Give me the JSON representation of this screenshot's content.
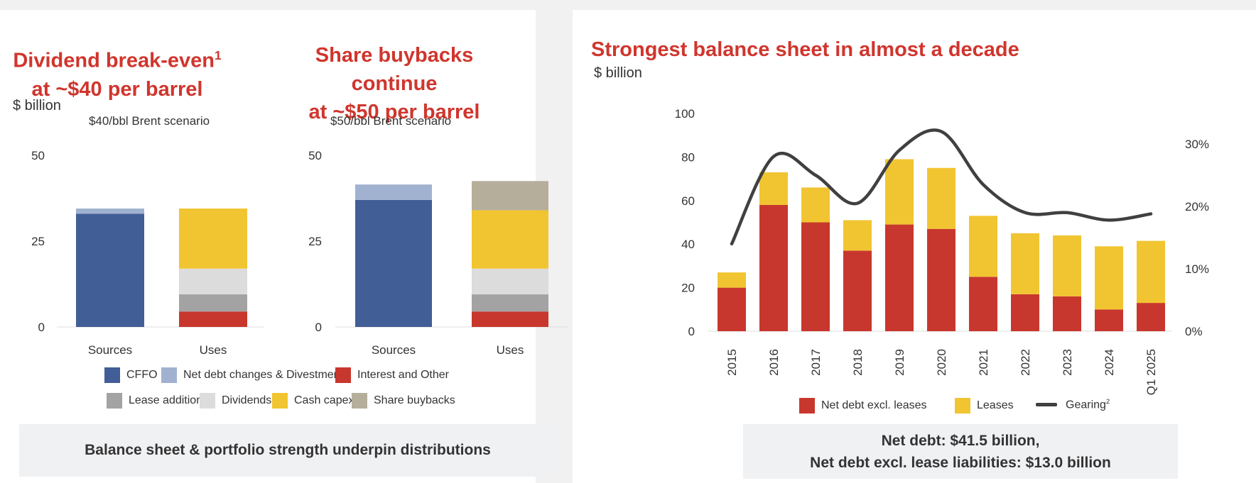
{
  "colors": {
    "cffo": "#425e96",
    "net_debt_divest": "#a1b2d0",
    "interest_other": "#c8372d",
    "lease_additions": "#a3a3a3",
    "dividends": "#dcdcdc",
    "cash_capex": "#f1c531",
    "share_buybacks": "#b5ae9b",
    "net_debt_excl_leases": "#c8372d",
    "leases": "#f1c531",
    "gearing": "#404040",
    "title_red": "#d0352d"
  },
  "left": {
    "title_a_line1": "Dividend break-even",
    "title_a_sup": "1",
    "title_a_line2": "at ~$40 per barrel",
    "title_b_line1": "Share buybacks continue",
    "title_b_line2": "at ~$50 per barrel",
    "unit": "$ billion",
    "scenario_a": "$40/bbl Brent scenario",
    "scenario_b": "$50/bbl Brent scenario",
    "banner": "Balance sheet & portfolio strength underpin distributions"
  },
  "right": {
    "title": "Strongest balance sheet in almost a decade",
    "unit": "$ billion",
    "banner_line1": "Net debt: $41.5 billion,",
    "banner_line2": "Net debt excl. lease liabilities: $13.0 billion"
  },
  "legend_left": [
    {
      "label": "CFFO",
      "color": "#425e96"
    },
    {
      "label": "Net debt changes & Divestments",
      "color": "#a1b2d0"
    },
    {
      "label": "Interest and Other",
      "color": "#c8372d"
    },
    {
      "label": "Lease additions",
      "color": "#a3a3a3"
    },
    {
      "label": "Dividends",
      "color": "#dcdcdc"
    },
    {
      "label": "Cash capex",
      "color": "#f1c531"
    },
    {
      "label": "Share buybacks",
      "color": "#b5ae9b"
    }
  ],
  "legend_right": {
    "net_debt": "Net debt excl. leases",
    "leases": "Leases",
    "gearing": "Gearing",
    "gearing_sup": "2"
  },
  "chart_data": [
    {
      "type": "bar",
      "stacked": true,
      "title": "$40/bbl Brent scenario",
      "ylabel": "$ billion",
      "ylim": [
        0,
        50
      ],
      "yticks": [
        0,
        25,
        50
      ],
      "categories": [
        "Sources",
        "Uses"
      ],
      "series": [
        {
          "name": "CFFO",
          "values": [
            33,
            0
          ]
        },
        {
          "name": "Net debt changes & Divestments",
          "values": [
            1.5,
            0
          ]
        },
        {
          "name": "Interest and Other",
          "values": [
            0,
            4.5
          ]
        },
        {
          "name": "Lease additions",
          "values": [
            0,
            5
          ]
        },
        {
          "name": "Dividends",
          "values": [
            0,
            7.5
          ]
        },
        {
          "name": "Cash capex",
          "values": [
            0,
            17.5
          ]
        },
        {
          "name": "Share buybacks",
          "values": [
            0,
            0
          ]
        }
      ]
    },
    {
      "type": "bar",
      "stacked": true,
      "title": "$50/bbl Brent scenario",
      "ylabel": "$ billion",
      "ylim": [
        0,
        50
      ],
      "yticks": [
        0,
        25,
        50
      ],
      "categories": [
        "Sources",
        "Uses"
      ],
      "series": [
        {
          "name": "CFFO",
          "values": [
            37,
            0
          ]
        },
        {
          "name": "Net debt changes & Divestments",
          "values": [
            4.5,
            0
          ]
        },
        {
          "name": "Interest and Other",
          "values": [
            0,
            4.5
          ]
        },
        {
          "name": "Lease additions",
          "values": [
            0,
            5
          ]
        },
        {
          "name": "Dividends",
          "values": [
            0,
            7.5
          ]
        },
        {
          "name": "Cash capex",
          "values": [
            0,
            17
          ]
        },
        {
          "name": "Share buybacks",
          "values": [
            0,
            8.5
          ]
        }
      ]
    },
    {
      "type": "bar",
      "stacked": true,
      "title": "Strongest balance sheet in almost a decade",
      "ylabel": "$ billion",
      "ylim": [
        0,
        100
      ],
      "yticks": [
        0,
        20,
        40,
        60,
        80,
        100
      ],
      "y2lim": [
        0,
        35
      ],
      "y2ticks": [
        "0%",
        "10%",
        "20%",
        "30%"
      ],
      "categories": [
        "2015",
        "2016",
        "2017",
        "2018",
        "2019",
        "2020",
        "2021",
        "2022",
        "2023",
        "2024",
        "Q1 2025"
      ],
      "series": [
        {
          "name": "Net debt excl. leases",
          "values": [
            20,
            58,
            50,
            37,
            49,
            47,
            25,
            17,
            16,
            10,
            13
          ]
        },
        {
          "name": "Leases",
          "values": [
            7,
            15,
            16,
            14,
            30,
            28,
            28,
            28,
            28,
            29,
            28.5
          ]
        },
        {
          "name": "Gearing",
          "axis": "secondary",
          "unit": "%",
          "values": [
            14,
            28,
            25,
            20.5,
            29,
            32,
            23.5,
            19,
            19,
            17.8,
            18.8
          ]
        }
      ]
    }
  ]
}
